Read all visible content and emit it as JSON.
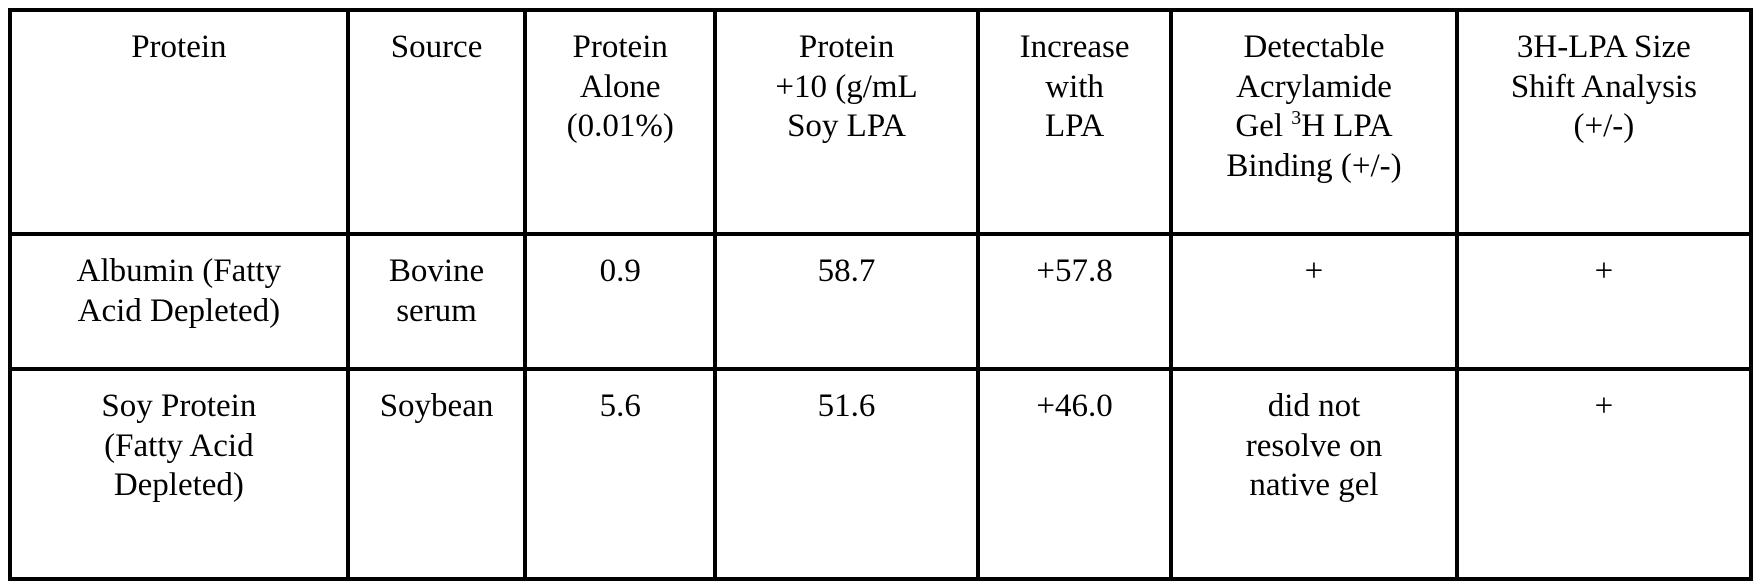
{
  "table": {
    "headers": {
      "protein": "Protein",
      "source": "Source",
      "protein_alone": "Protein\nAlone\n(0.01%)",
      "protein_plus_lpa": "Protein\n+10 (g/mL\nSoy LPA",
      "increase": "Increase\nwith\nLPA",
      "gel_binding_before": "Detectable\nAcrylamide\nGel ",
      "gel_binding_sup": "3",
      "gel_binding_after": "H LPA\nBinding (+/-)",
      "size_shift": "3H-LPA Size\nShift Analysis\n(+/-)"
    },
    "rows": [
      {
        "protein": "Albumin (Fatty\nAcid Depleted)",
        "source": "Bovine\nserum",
        "protein_alone": "0.9",
        "protein_plus_lpa": "58.7",
        "increase": "+57.8",
        "gel_binding": "+",
        "size_shift": "+"
      },
      {
        "protein": "Soy Protein\n(Fatty Acid\nDepleted)",
        "source": "Soybean",
        "protein_alone": "5.6",
        "protein_plus_lpa": "51.6",
        "increase": "+46.0",
        "gel_binding": "did not\nresolve on\nnative gel",
        "size_shift": "+"
      }
    ]
  }
}
